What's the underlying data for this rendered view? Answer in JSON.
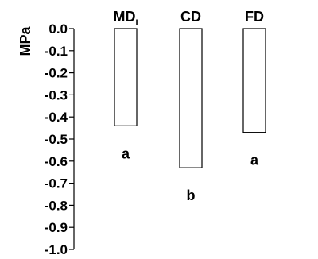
{
  "chart_data": {
    "type": "bar",
    "title": "",
    "xlabel": "",
    "ylabel": "MPa",
    "ylim": [
      -1.0,
      0.0
    ],
    "yticks": [
      "0.0",
      "-0.1",
      "-0.2",
      "-0.3",
      "-0.4",
      "-0.5",
      "-0.6",
      "-0.7",
      "-0.8",
      "-0.9",
      "-1.0"
    ],
    "categories": [
      {
        "main": "MD",
        "sub": "I"
      },
      {
        "main": "CD",
        "sub": ""
      },
      {
        "main": "FD",
        "sub": ""
      }
    ],
    "values": [
      -0.44,
      -0.63,
      -0.47
    ],
    "group_labels": [
      "a",
      "b",
      "a"
    ],
    "grid": false,
    "bar_fill": "#ffffff",
    "bar_stroke": "#000000"
  }
}
